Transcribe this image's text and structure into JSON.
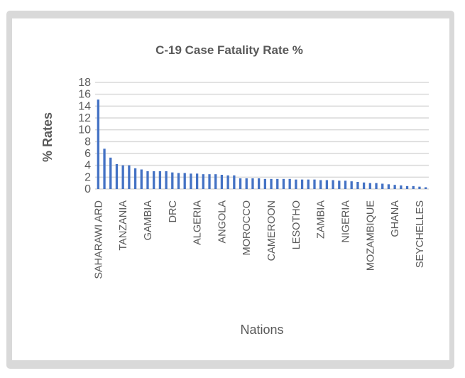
{
  "chart_data": {
    "type": "bar",
    "title": "C-19  Case Fatality Rate  %",
    "xlabel": "Nations",
    "ylabel": "% Rates",
    "ylim": [
      0,
      18
    ],
    "yticks": [
      "0",
      "2",
      "4",
      "6",
      "8",
      "10",
      "12",
      "14",
      "16",
      "18"
    ],
    "grid": true,
    "legend": "none",
    "bar_color": "#4472c4",
    "categories": [
      "SAHARAWI ARD",
      "",
      "",
      "",
      "TANZANIA",
      "",
      "",
      "",
      "GAMBIA",
      "",
      "",
      "",
      "DRC",
      "",
      "",
      "",
      "ALGERIA",
      "",
      "",
      "",
      "ANGOLA",
      "",
      "",
      "",
      "MOROCCO",
      "",
      "",
      "",
      "CAMEROON",
      "",
      "",
      "",
      "LESOTHO",
      "",
      "",
      "",
      "ZAMBIA",
      "",
      "",
      "",
      "NIGERIA",
      "",
      "",
      "",
      "MOZAMBIQUE",
      "",
      "",
      "",
      "GHANA",
      "",
      "",
      "",
      "SEYCHELLES",
      ""
    ],
    "values": [
      15.1,
      6.8,
      5.3,
      4.2,
      4.0,
      4.0,
      3.5,
      3.3,
      3.0,
      3.0,
      3.0,
      3.0,
      2.8,
      2.7,
      2.7,
      2.6,
      2.6,
      2.5,
      2.5,
      2.5,
      2.4,
      2.3,
      2.3,
      1.8,
      1.8,
      1.8,
      1.8,
      1.7,
      1.7,
      1.7,
      1.7,
      1.7,
      1.6,
      1.6,
      1.6,
      1.6,
      1.5,
      1.5,
      1.5,
      1.4,
      1.4,
      1.3,
      1.2,
      1.1,
      1.0,
      1.0,
      0.9,
      0.8,
      0.7,
      0.6,
      0.5,
      0.5,
      0.4,
      0.3
    ]
  }
}
